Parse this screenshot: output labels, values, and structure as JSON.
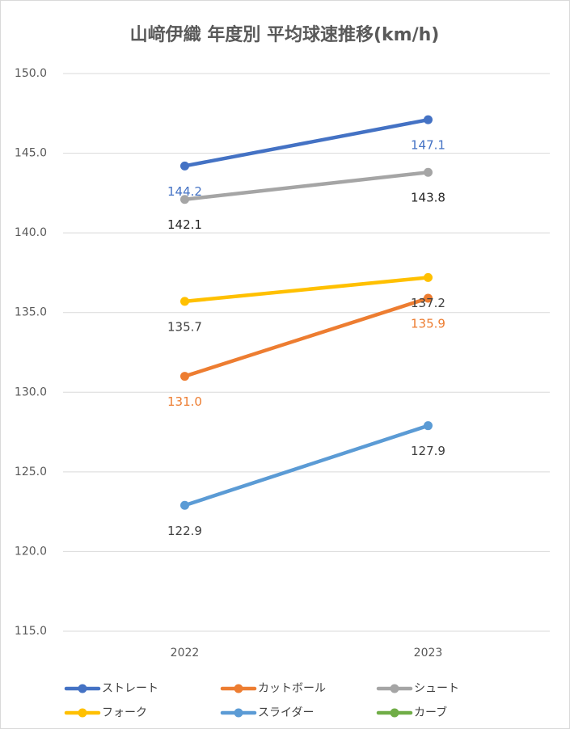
{
  "chart_data": {
    "type": "line",
    "title": "山﨑伊織 年度別 平均球速推移(km/h)",
    "categories": [
      "2022",
      "2023"
    ],
    "series": [
      {
        "name": "ストレート",
        "color": "#4472c4",
        "label_color": "#4472c4",
        "values": [
          144.2,
          147.1
        ],
        "value_labels": [
          "144.2",
          "147.1"
        ]
      },
      {
        "name": "カットボール",
        "color": "#ed7d31",
        "label_color": "#ed7d31",
        "values": [
          131.0,
          135.9
        ],
        "value_labels": [
          "131.0",
          "135.9"
        ]
      },
      {
        "name": "シュート",
        "color": "#a5a5a5",
        "label_color": "#262626",
        "values": [
          142.1,
          143.8
        ],
        "value_labels": [
          "142.1",
          "143.8"
        ]
      },
      {
        "name": "フォーク",
        "color": "#ffc000",
        "label_color": "#404040",
        "values": [
          135.7,
          137.2
        ],
        "value_labels": [
          "135.7",
          "137.2"
        ]
      },
      {
        "name": "スライダー",
        "color": "#5b9bd5",
        "label_color": "#404040",
        "values": [
          122.9,
          127.9
        ],
        "value_labels": [
          "122.9",
          "127.9"
        ]
      },
      {
        "name": "カーブ",
        "color": "#70ad47",
        "values": [
          null,
          null
        ]
      }
    ],
    "ylim": [
      115,
      150
    ],
    "yticks": [
      {
        "value": 115,
        "label": "115.0"
      },
      {
        "value": 120,
        "label": "120.0"
      },
      {
        "value": 125,
        "label": "125.0"
      },
      {
        "value": 130,
        "label": "130.0"
      },
      {
        "value": 135,
        "label": "135.0"
      },
      {
        "value": 140,
        "label": "140.0"
      },
      {
        "value": 145,
        "label": "145.0"
      },
      {
        "value": 150,
        "label": "150.0"
      }
    ],
    "grid": true,
    "legend": "bottom"
  }
}
